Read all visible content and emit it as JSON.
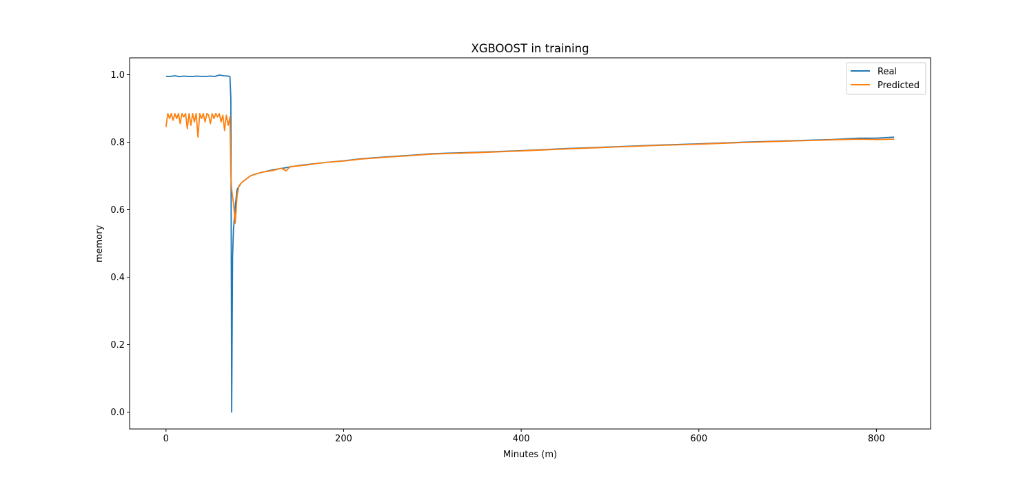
{
  "chart_data": {
    "type": "line",
    "title": "XGBOOST in training",
    "xlabel": "Minutes (m)",
    "ylabel": "memory",
    "xlim": [
      -41,
      861
    ],
    "ylim": [
      -0.05,
      1.05
    ],
    "xticks": [
      0,
      200,
      400,
      600,
      800
    ],
    "yticks": [
      0.0,
      0.2,
      0.4,
      0.6,
      0.8,
      1.0
    ],
    "xtick_labels": [
      "0",
      "200",
      "400",
      "600",
      "800"
    ],
    "ytick_labels": [
      "0.0",
      "0.2",
      "0.4",
      "0.6",
      "0.8",
      "1.0"
    ],
    "grid": false,
    "legend_position": "top-right",
    "series": [
      {
        "name": "Real",
        "color": "#1f77b4",
        "x": [
          0,
          5,
          10,
          15,
          20,
          25,
          30,
          35,
          40,
          45,
          50,
          55,
          60,
          65,
          70,
          72,
          73,
          74,
          75,
          76,
          78,
          80,
          85,
          90,
          95,
          100,
          110,
          120,
          130,
          140,
          150,
          160,
          170,
          180,
          200,
          220,
          250,
          280,
          300,
          350,
          400,
          450,
          500,
          550,
          600,
          650,
          700,
          750,
          780,
          800,
          820
        ],
        "y": [
          0.995,
          0.995,
          0.997,
          0.994,
          0.996,
          0.995,
          0.995,
          0.996,
          0.995,
          0.995,
          0.996,
          0.995,
          0.999,
          0.997,
          0.996,
          0.994,
          0.93,
          0.0,
          0.46,
          0.54,
          0.61,
          0.66,
          0.68,
          0.69,
          0.7,
          0.705,
          0.712,
          0.718,
          0.722,
          0.727,
          0.731,
          0.734,
          0.737,
          0.74,
          0.745,
          0.751,
          0.757,
          0.762,
          0.766,
          0.77,
          0.775,
          0.781,
          0.786,
          0.791,
          0.795,
          0.8,
          0.804,
          0.808,
          0.812,
          0.812,
          0.815
        ]
      },
      {
        "name": "Predicted",
        "color": "#ff7f0e",
        "x": [
          0,
          2,
          4,
          6,
          8,
          10,
          12,
          14,
          16,
          18,
          20,
          22,
          24,
          26,
          28,
          30,
          32,
          34,
          36,
          38,
          40,
          42,
          44,
          46,
          48,
          50,
          52,
          54,
          56,
          58,
          60,
          62,
          64,
          66,
          68,
          70,
          72,
          73,
          74,
          76,
          78,
          80,
          82,
          85,
          90,
          95,
          100,
          110,
          120,
          130,
          135,
          140,
          150,
          160,
          170,
          180,
          200,
          220,
          250,
          280,
          300,
          350,
          400,
          450,
          500,
          550,
          600,
          650,
          700,
          750,
          780,
          800,
          820
        ],
        "y": [
          0.845,
          0.885,
          0.87,
          0.885,
          0.865,
          0.885,
          0.87,
          0.885,
          0.855,
          0.885,
          0.875,
          0.885,
          0.84,
          0.885,
          0.85,
          0.885,
          0.86,
          0.885,
          0.815,
          0.885,
          0.87,
          0.885,
          0.86,
          0.885,
          0.88,
          0.855,
          0.885,
          0.87,
          0.885,
          0.875,
          0.885,
          0.86,
          0.88,
          0.835,
          0.88,
          0.85,
          0.875,
          0.7,
          0.66,
          0.62,
          0.56,
          0.64,
          0.67,
          0.68,
          0.69,
          0.7,
          0.705,
          0.712,
          0.716,
          0.723,
          0.715,
          0.728,
          0.73,
          0.733,
          0.737,
          0.74,
          0.744,
          0.75,
          0.756,
          0.761,
          0.765,
          0.769,
          0.774,
          0.78,
          0.785,
          0.79,
          0.794,
          0.799,
          0.803,
          0.807,
          0.809,
          0.808,
          0.809
        ]
      }
    ]
  }
}
